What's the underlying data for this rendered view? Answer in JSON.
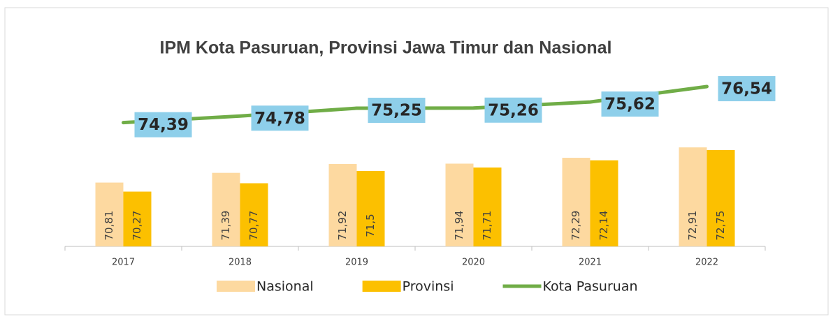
{
  "chart_data": {
    "type": "bar-line",
    "title": "IPM Kota Pasuruan, Provinsi Jawa Timur dan Nasional",
    "categories": [
      "2017",
      "2018",
      "2019",
      "2020",
      "2021",
      "2022"
    ],
    "series": [
      {
        "name": "Nasional",
        "type": "bar",
        "color": "#fdd9a0",
        "values": [
          70.81,
          71.39,
          71.92,
          71.94,
          72.29,
          72.91
        ],
        "value_labels": [
          "70,81",
          "71,39",
          "71,92",
          "71,94",
          "72,29",
          "72,91"
        ]
      },
      {
        "name": "Provinsi",
        "type": "bar",
        "color": "#fcc000",
        "values": [
          70.27,
          70.77,
          71.5,
          71.71,
          72.14,
          72.75
        ],
        "value_labels": [
          "70,27",
          "70,77",
          "71,5",
          "71,71",
          "72,14",
          "72,75"
        ]
      },
      {
        "name": "Kota Pasuruan",
        "type": "line",
        "color": "#70ad47",
        "values": [
          74.39,
          74.78,
          75.25,
          75.26,
          75.62,
          76.54
        ],
        "value_labels": [
          "74,39",
          "74,78",
          "75,25",
          "75,26",
          "75,62",
          "76,54"
        ]
      }
    ],
    "ylim": [
      67,
      77
    ]
  }
}
